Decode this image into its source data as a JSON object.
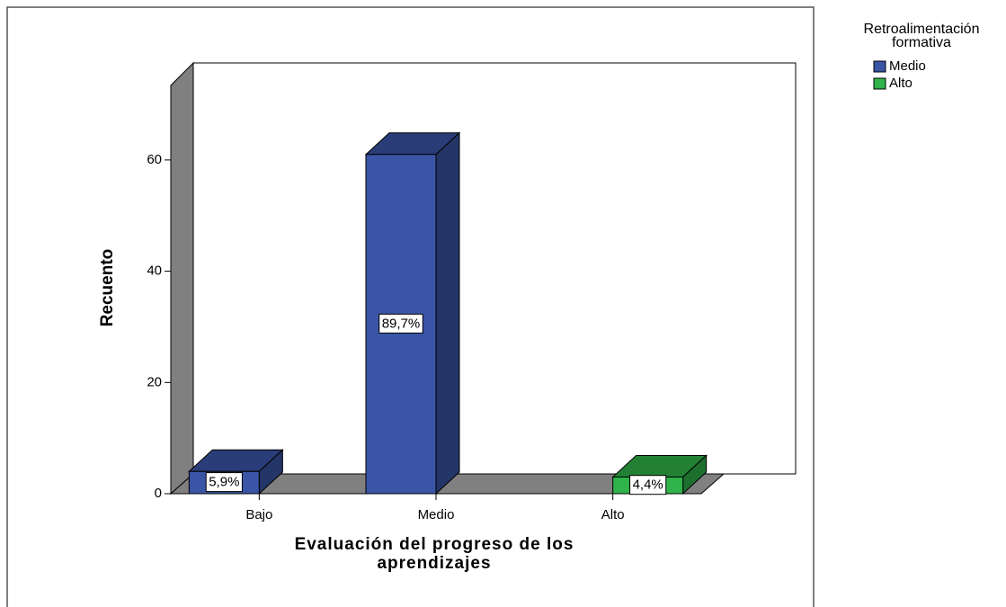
{
  "chart_data": {
    "type": "bar3d",
    "y_label": "Recuento",
    "x_label": [
      "Evaluación del progreso de los",
      "aprendizajes"
    ],
    "legend_title": [
      "Retroalimentación",
      "formativa"
    ],
    "categories": [
      "Bajo",
      "Medio",
      "Alto"
    ],
    "series": [
      {
        "name": "Medio",
        "color": "#3a55a6",
        "values": [
          4,
          61,
          null
        ],
        "data_labels": [
          "5,9%",
          "89,7%",
          null
        ]
      },
      {
        "name": "Alto",
        "color": "#2fb34a",
        "values": [
          null,
          null,
          3
        ],
        "data_labels": [
          null,
          null,
          "4,4%"
        ]
      }
    ],
    "ylim": [
      0,
      73.4
    ],
    "yticks": [
      0,
      20,
      40,
      60
    ]
  }
}
